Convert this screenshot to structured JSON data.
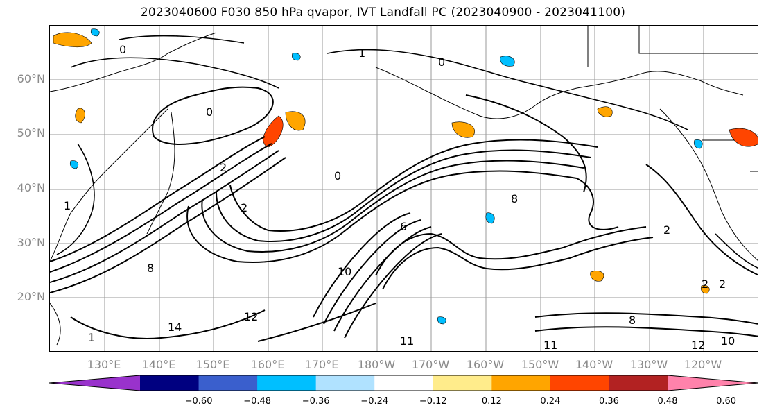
{
  "title": "2023040600 F030 850 hPa qvapor, IVT Landfall PC (2023040900 - 2023041100)",
  "lat_labels": [
    "60°N",
    "50°N",
    "40°N",
    "30°N",
    "20°N"
  ],
  "lon_labels": [
    "130°E",
    "140°E",
    "150°E",
    "160°E",
    "170°E",
    "180°W",
    "170°W",
    "160°W",
    "150°W",
    "140°W",
    "130°W",
    "120°W"
  ],
  "colorbar": {
    "colors": [
      "#9932cc",
      "#000080",
      "#3a5fcd",
      "#00bfff",
      "#b0e2ff",
      "#ffffff",
      "#ffec8b",
      "#ffa500",
      "#ff4500",
      "#b22222",
      "#ff82ab"
    ],
    "tick_labels": [
      "−0.60",
      "−0.48",
      "−0.36",
      "−0.24",
      "−0.12",
      "0.12",
      "0.24",
      "0.36",
      "0.48",
      "0.60"
    ]
  },
  "contour_labels": [
    "0",
    "0",
    "0",
    "0",
    "2",
    "2",
    "2",
    "2",
    "1",
    "1",
    "6",
    "8",
    "8",
    "8",
    "10",
    "11",
    "11",
    "12",
    "12",
    "14",
    "2",
    "1",
    "10"
  ]
}
